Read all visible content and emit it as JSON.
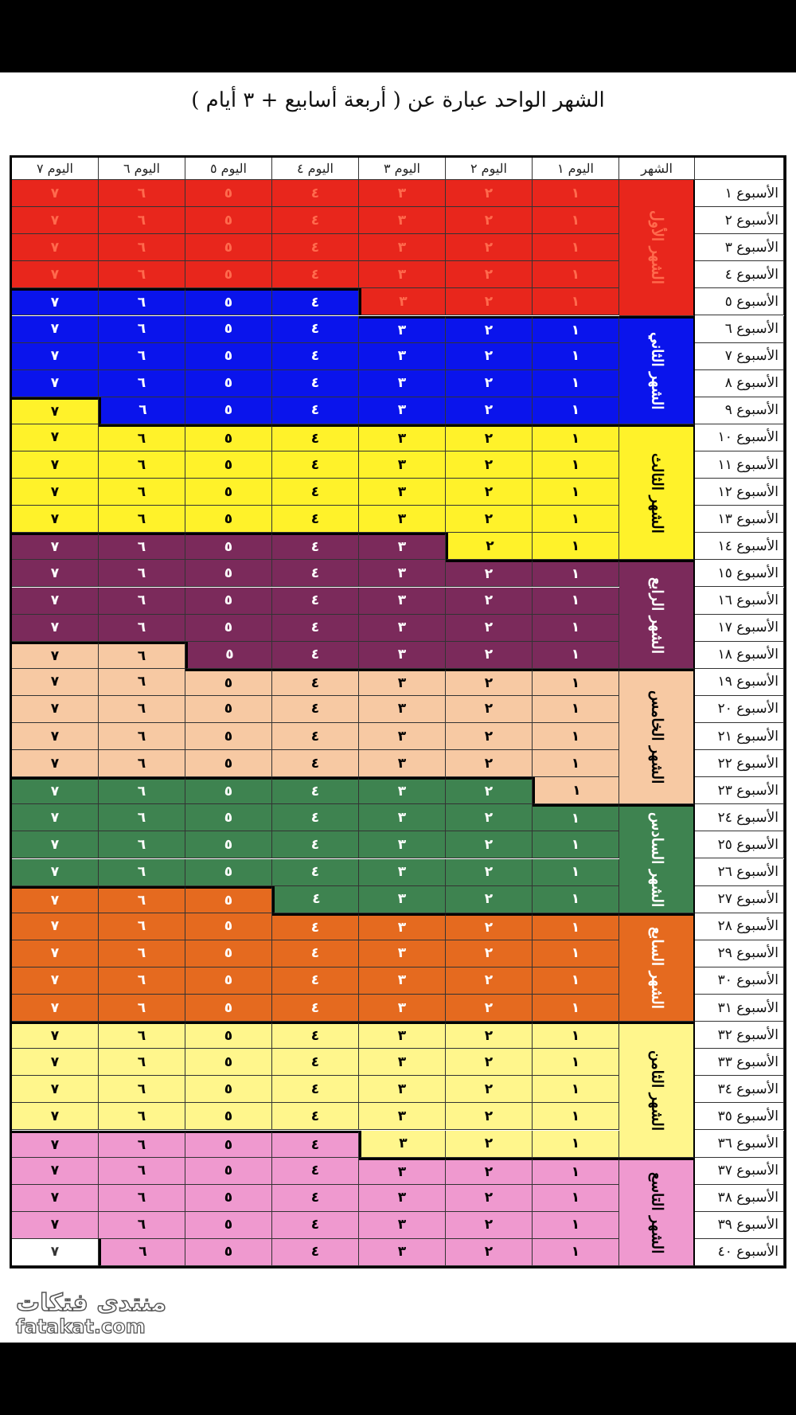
{
  "title": "الشهر الواحد عبارة عن ( أربعة أسابيع + ٣ أيام )",
  "header": {
    "month": "الشهر",
    "days": [
      "اليوم ١",
      "اليوم ٢",
      "اليوم ٣",
      "اليوم ٤",
      "اليوم ٥",
      "اليوم ٦",
      "اليوم ٧"
    ]
  },
  "day_numbers": [
    "١",
    "٢",
    "٣",
    "٤",
    "٥",
    "٦",
    "٧"
  ],
  "weeks": [
    "الأسبوع ١",
    "الأسبوع ٢",
    "الأسبوع ٣",
    "الأسبوع ٤",
    "الأسبوع ٥",
    "الأسبوع ٦",
    "الأسبوع ٧",
    "الأسبوع ٨",
    "الأسبوع ٩",
    "الأسبوع ١٠",
    "الأسبوع ١١",
    "الأسبوع ١٢",
    "الأسبوع ١٣",
    "الأسبوع ١٤",
    "الأسبوع ١٥",
    "الأسبوع ١٦",
    "الأسبوع ١٧",
    "الأسبوع ١٨",
    "الأسبوع ١٩",
    "الأسبوع ٢٠",
    "الأسبوع ٢١",
    "الأسبوع ٢٢",
    "الأسبوع ٢٣",
    "الأسبوع ٢٤",
    "الأسبوع ٢٥",
    "الأسبوع ٢٦",
    "الأسبوع ٢٧",
    "الأسبوع ٢٨",
    "الأسبوع ٢٩",
    "الأسبوع ٣٠",
    "الأسبوع ٣١",
    "الأسبوع ٣٢",
    "الأسبوع ٣٣",
    "الأسبوع ٣٤",
    "الأسبوع ٣٥",
    "الأسبوع ٣٦",
    "الأسبوع ٣٧",
    "الأسبوع ٣٨",
    "الأسبوع ٣٩",
    "الأسبوع ٤٠"
  ],
  "months": [
    {
      "label": "الشهر الأول",
      "color": "#e8261c",
      "text_color": "#ff6a4d",
      "start_week": 1,
      "start_day": 1,
      "end_week": 5,
      "end_day": 3
    },
    {
      "label": "الشهر الثاني",
      "color": "#0a14ec",
      "text_color": "#ffffff",
      "start_week": 5,
      "start_day": 4,
      "end_week": 9,
      "end_day": 6
    },
    {
      "label": "الشهر الثالث",
      "color": "#fff22a",
      "text_color": "#000000",
      "start_week": 9,
      "start_day": 7,
      "end_week": 14,
      "end_day": 2
    },
    {
      "label": "الشهر الرابع",
      "color": "#7b2a5b",
      "text_color": "#ffffff",
      "start_week": 14,
      "start_day": 3,
      "end_week": 18,
      "end_day": 5
    },
    {
      "label": "الشهر الخامس",
      "color": "#f7c9a3",
      "text_color": "#000000",
      "start_week": 18,
      "start_day": 6,
      "end_week": 23,
      "end_day": 1
    },
    {
      "label": "الشهر السادس",
      "color": "#3e8350",
      "text_color": "#ffffff",
      "start_week": 23,
      "start_day": 2,
      "end_week": 27,
      "end_day": 4
    },
    {
      "label": "الشهر السابع",
      "color": "#e56a1f",
      "text_color": "#ffffff",
      "start_week": 27,
      "start_day": 5,
      "end_week": 31,
      "end_day": 7
    },
    {
      "label": "الشهر الثامن",
      "color": "#fff68c",
      "text_color": "#000000",
      "start_week": 32,
      "start_day": 1,
      "end_week": 36,
      "end_day": 3
    },
    {
      "label": "الشهر التاسع",
      "color": "#ef99cf",
      "text_color": "#000000",
      "start_week": 36,
      "start_day": 4,
      "end_week": 40,
      "end_day": 6
    }
  ],
  "logo": {
    "arabic": "منتدى فتكات",
    "latin": "fatakat.com"
  }
}
